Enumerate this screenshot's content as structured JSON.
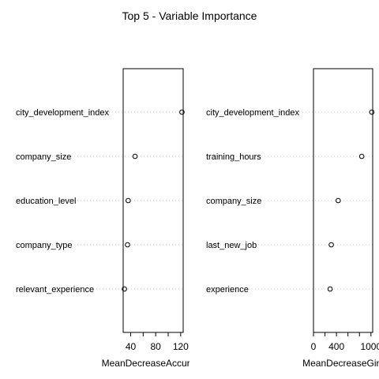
{
  "chart_data": {
    "title": "Top 5 - Variable Importance",
    "panels": [
      {
        "type": "scatter",
        "xlabel": "MeanDecreaseAccuracy",
        "xlim": [
          28,
          124
        ],
        "xticks": [
          40,
          80,
          120
        ],
        "xminor": [
          60,
          100
        ],
        "categories": [
          "city_development_index",
          "company_size",
          "education_level",
          "company_type",
          "relevant_experience"
        ],
        "values": [
          122,
          47,
          36,
          35,
          30
        ]
      },
      {
        "type": "scatter",
        "xlabel": "MeanDecreaseGini",
        "xlim": [
          0,
          1030
        ],
        "xticks": [
          0,
          400,
          1000
        ],
        "xminor": [
          200,
          600,
          800
        ],
        "categories": [
          "city_development_index",
          "training_hours",
          "company_size",
          "last_new_job",
          "experience"
        ],
        "values": [
          1015,
          840,
          430,
          310,
          290
        ]
      }
    ]
  }
}
